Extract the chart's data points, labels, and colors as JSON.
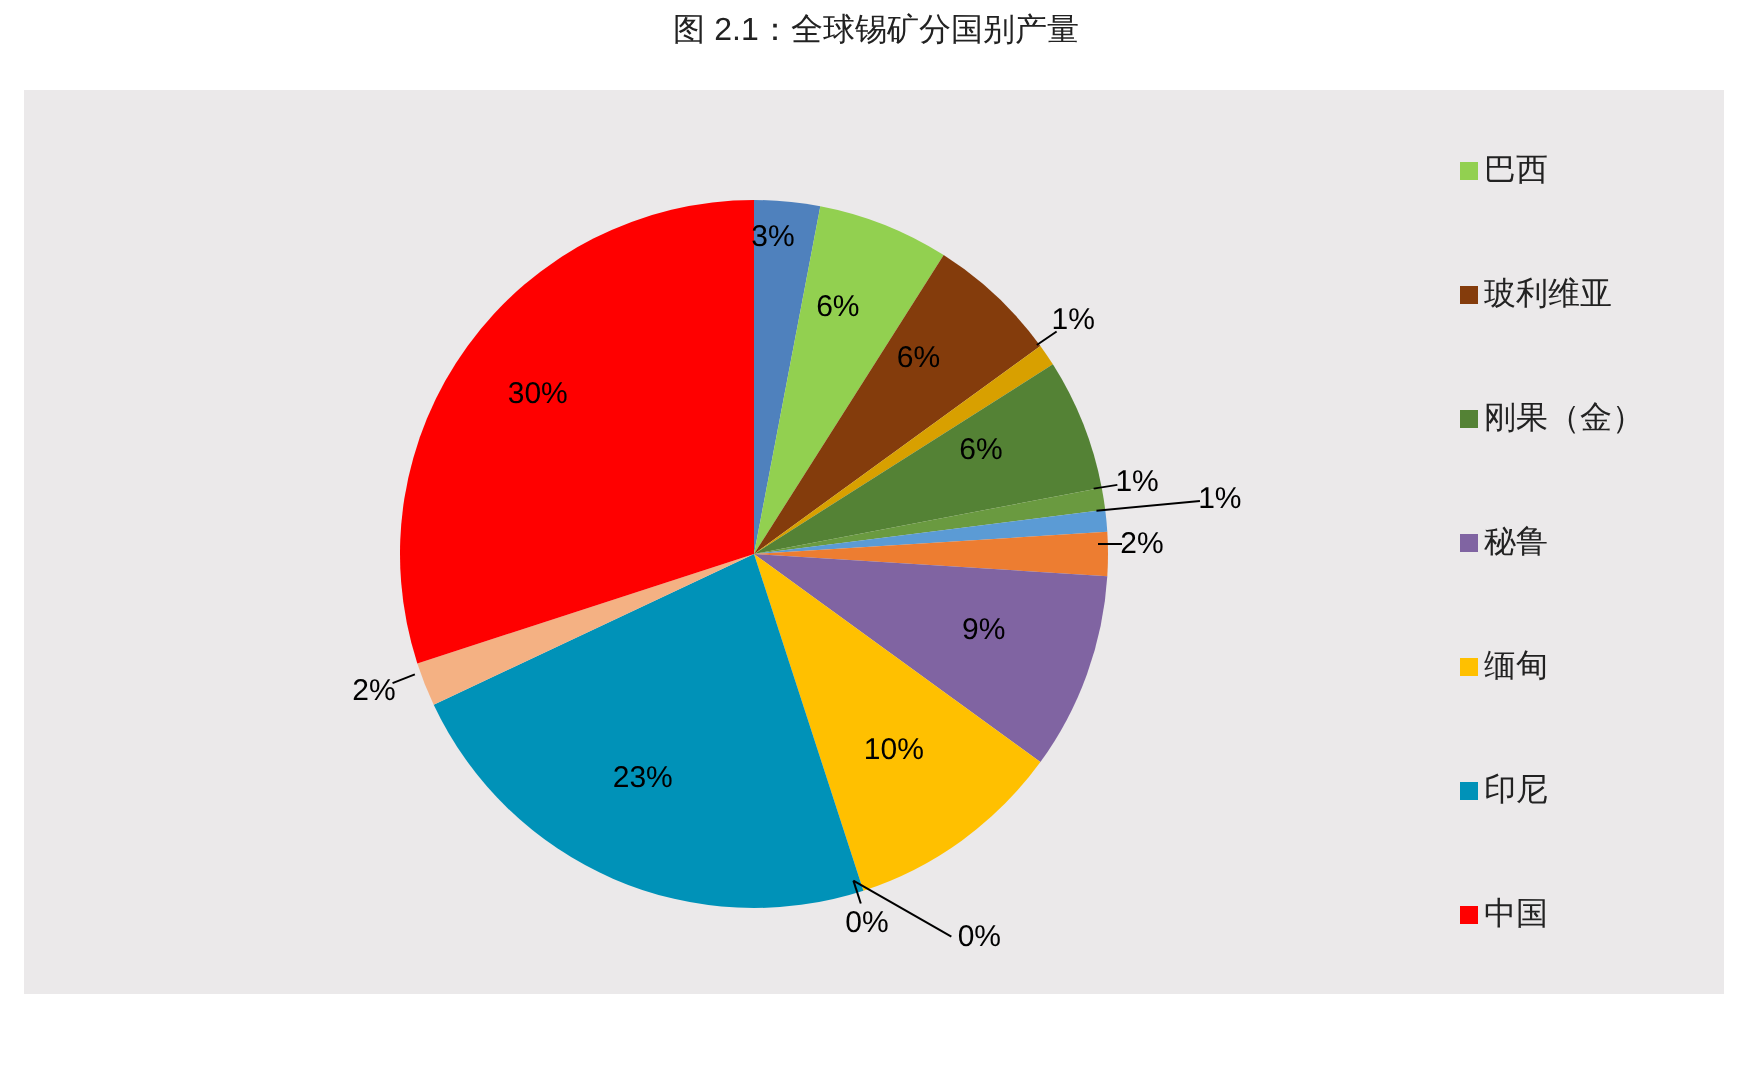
{
  "chart_data": {
    "type": "pie",
    "title": "图 2.1：全球锡矿分国别产量",
    "categories": [
      null,
      "巴西",
      "玻利维亚",
      null,
      "刚果（金）",
      null,
      null,
      null,
      "秘鲁",
      "缅甸",
      null,
      null,
      "印尼",
      null,
      "中国"
    ],
    "values": [
      3,
      6,
      6,
      1,
      6,
      1,
      1,
      2,
      9,
      10,
      0,
      0,
      23,
      2,
      30
    ],
    "colors": [
      "#4f81bd",
      "#92d050",
      "#843c0c",
      "#d8a000",
      "#548235",
      "#6a9a40",
      "#5b9bd5",
      "#ed7d31",
      "#8064a2",
      "#ffc000",
      "#4472c4",
      "#70ad47",
      "#0092b8",
      "#f4b183",
      "#ff0000"
    ],
    "value_labels": [
      "3%",
      "6%",
      "6%",
      "1%",
      "6%",
      "1%",
      "1%",
      "2%",
      "9%",
      "10%",
      "0%",
      "0%",
      "23%",
      "2%",
      "30%"
    ],
    "legend": "right"
  }
}
